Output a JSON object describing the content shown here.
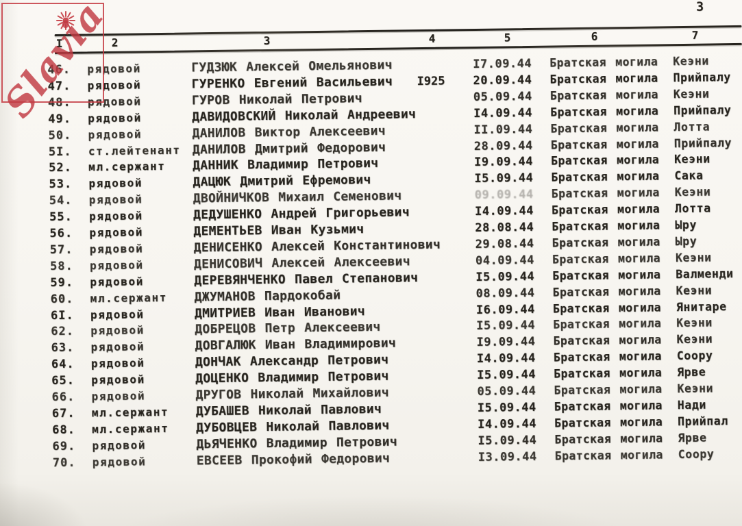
{
  "page": {
    "number": "3",
    "paper_color": "#f7f5f0",
    "ink_color": "#26231d"
  },
  "watermark": {
    "text": "Slavia",
    "color": "#c43b42",
    "icon": "sun-icon"
  },
  "table": {
    "column_headers": [
      "I",
      "2",
      "3",
      "4",
      "5",
      "6",
      "7"
    ],
    "rows": [
      {
        "num": "46.",
        "rank": "рядовой",
        "name": "ГУДЗЮК Алексей Омельянович",
        "year": "",
        "date": "I7.09.44",
        "grave": "Братская могила",
        "place": "Кеэни"
      },
      {
        "num": "47.",
        "rank": "рядовой",
        "name": "ГУРЕНКО Евгений Васильевич",
        "year": "I925",
        "date": "20.09.44",
        "grave": "Братская могила",
        "place": "Прийпалу"
      },
      {
        "num": "48.",
        "rank": "рядовой",
        "name": "ГУРОВ Николай Петрович",
        "year": "",
        "date": "05.09.44",
        "grave": "Братская могила",
        "place": "Кеэни"
      },
      {
        "num": "49.",
        "rank": "рядовой",
        "name": "ДАВИДОВСКИЙ Николай Андреевич",
        "year": "",
        "date": "I4.09.44",
        "grave": "Братская могила",
        "place": "Прийпалу"
      },
      {
        "num": "50.",
        "rank": "рядовой",
        "name": "ДАНИЛОВ Виктор Алексеевич",
        "year": "",
        "date": "II.09.44",
        "grave": "Братская могила",
        "place": "Лотта"
      },
      {
        "num": "5I.",
        "rank": "ст.лейтенант",
        "name": "ДАНИЛОВ Дмитрий Федорович",
        "year": "",
        "date": "28.09.44",
        "grave": "Братская могила",
        "place": "Прийпалу"
      },
      {
        "num": "52.",
        "rank": "мл.сержант",
        "name": "ДАННИК Владимир Петрович",
        "year": "",
        "date": "I9.09.44",
        "grave": "Братская могила",
        "place": "Кеэни"
      },
      {
        "num": "53.",
        "rank": "рядовой",
        "name": "ДАЦЮК Дмитрий Ефремович",
        "year": "",
        "date": "I5.09.44",
        "grave": "Братская могила",
        "place": "Сака"
      },
      {
        "num": "54.",
        "rank": "рядовой",
        "name": "ДВОЙНИЧКОВ Михаил Семенович",
        "year": "",
        "date": "09.09.44",
        "grave": "Братская могила",
        "place": "Кеэни",
        "faded_date": true
      },
      {
        "num": "55.",
        "rank": "рядовой",
        "name": "ДЕДУШЕНКО Андрей Григорьевич",
        "year": "",
        "date": "I4.09.44",
        "grave": "Братская могила",
        "place": "Лотта"
      },
      {
        "num": "56.",
        "rank": "рядовой",
        "name": "ДЕМЕНТЬЕВ Иван Кузьмич",
        "year": "",
        "date": "28.08.44",
        "grave": "Братская могила",
        "place": "Ыру"
      },
      {
        "num": "57.",
        "rank": "рядовой",
        "name": "ДЕНИСЕНКО Алексей Константинович",
        "year": "",
        "date": "29.08.44",
        "grave": "Братская могила",
        "place": "Ыру"
      },
      {
        "num": "58.",
        "rank": "рядовой",
        "name": "ДЕНИСОВИЧ Алексей Алексеевич",
        "year": "",
        "date": "04.09.44",
        "grave": "Братская могила",
        "place": "Кеэни"
      },
      {
        "num": "59.",
        "rank": "рядовой",
        "name": "ДЕРЕВЯНЧЕНКО Павел Степанович",
        "year": "",
        "date": "I5.09.44",
        "grave": "Братская могила",
        "place": "Валменди"
      },
      {
        "num": "60.",
        "rank": "мл.сержант",
        "name": "ДЖУМАНОВ Пардокобай",
        "year": "",
        "date": "08.09.44",
        "grave": "Братская могила",
        "place": "Кеэни"
      },
      {
        "num": "6I.",
        "rank": "рядовой",
        "name": "ДМИТРИЕВ Иван Иванович",
        "year": "",
        "date": "I6.09.44",
        "grave": "Братская могила",
        "place": "Янитаре"
      },
      {
        "num": "62.",
        "rank": "рядовой",
        "name": "ДОБРЕЦОВ Петр Алексеевич",
        "year": "",
        "date": "I5.09.44",
        "grave": "Братская могила",
        "place": "Кеэни"
      },
      {
        "num": "63.",
        "rank": "рядовой",
        "name": "ДОВГАЛЮК Иван Владимирович",
        "year": "",
        "date": "I9.09.44",
        "grave": "Братская могила",
        "place": "Кеэни"
      },
      {
        "num": "64.",
        "rank": "рядовой",
        "name": "ДОНЧАК Александр Петрович",
        "year": "",
        "date": "I4.09.44",
        "grave": "Братская могила",
        "place": "Соору"
      },
      {
        "num": "65.",
        "rank": "рядовой",
        "name": "ДОЦЕНКО Владимир Петрович",
        "year": "",
        "date": "I5.09.44",
        "grave": "Братская могила",
        "place": "Ярве"
      },
      {
        "num": "66.",
        "rank": "рядовой",
        "name": "ДРУГОВ Николай Михайлович",
        "year": "",
        "date": "05.09.44",
        "grave": "Братская могила",
        "place": "Кеэни"
      },
      {
        "num": "67.",
        "rank": "мл.сержант",
        "name": "ДУБАШЕВ Николай Павлович",
        "year": "",
        "date": "I5.09.44",
        "grave": "Братская могила",
        "place": "Нади"
      },
      {
        "num": "68.",
        "rank": "мл.сержант",
        "name": "ДУБОВЦЕВ Николай Павлович",
        "year": "",
        "date": "I4.09.44",
        "grave": "Братская могила",
        "place": "Прийпал"
      },
      {
        "num": "69.",
        "rank": "рядовой",
        "name": "ДЬЯЧЕНКО Владимир Петрович",
        "year": "",
        "date": "I5.09.44",
        "grave": "Братская могила",
        "place": "Ярве"
      },
      {
        "num": "70.",
        "rank": "рядовой",
        "name": "ЕВСЕЕВ Прокофий Федорович",
        "year": "",
        "date": "I3.09.44",
        "grave": "Братская могила",
        "place": "Соору"
      }
    ]
  }
}
